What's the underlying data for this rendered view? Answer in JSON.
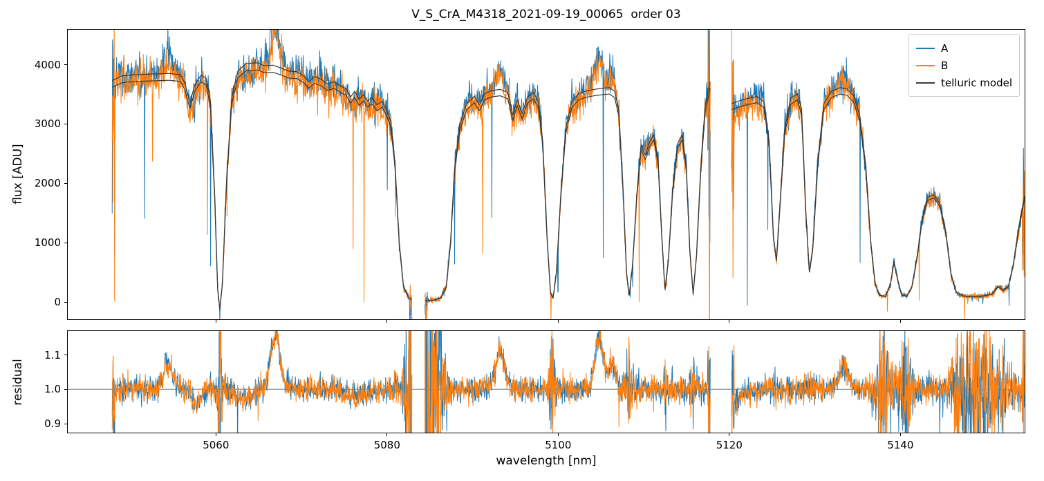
{
  "chart_data": {
    "type": "line",
    "title": "V_S_CrA_M4318_2021-09-19_00065  order 03",
    "xlabel": "wavelength [nm]",
    "xlim": [
      5042.6,
      5154.6
    ],
    "xtick_values": [
      5060,
      5080,
      5100,
      5120,
      5140
    ],
    "xtick_labels": [
      "5060",
      "5080",
      "5100",
      "5120",
      "5140"
    ],
    "grid": false,
    "background": "#ffffff",
    "frame_color": "#000000",
    "hline_color": "#777777",
    "panels": [
      {
        "name": "flux",
        "ylabel": "flux [ADU]",
        "ylim": [
          -300,
          4600
        ],
        "ytick_values": [
          0,
          1000,
          2000,
          3000,
          4000
        ],
        "ytick_labels": [
          "0",
          "1000",
          "2000",
          "3000",
          "4000"
        ]
      },
      {
        "name": "residual",
        "ylabel": "residual",
        "ylim": [
          0.872,
          1.172
        ],
        "ytick_values": [
          0.9,
          1.0,
          1.1
        ],
        "ytick_labels": [
          "0.9",
          "1.0",
          "1.1"
        ],
        "hline": 1.0
      }
    ],
    "legend": [
      {
        "label": "A",
        "color": "#1f77b4"
      },
      {
        "label": "B",
        "color": "#ff7f0e"
      },
      {
        "label": "telluric model",
        "color": "#3a3a3a"
      }
    ],
    "legend_position": "upper right",
    "segments": [
      [
        5047.8,
        5082.9
      ],
      [
        5084.4,
        5117.8
      ],
      [
        5120.3,
        5154.6
      ]
    ],
    "model_scale_B": 0.97,
    "telluric_model_points": [
      [
        5047.8,
        3740
      ],
      [
        5049.0,
        3820
      ],
      [
        5050.5,
        3840
      ],
      [
        5052.5,
        3850
      ],
      [
        5054.5,
        3860
      ],
      [
        5055.8,
        3840
      ],
      [
        5056.3,
        3700
      ],
      [
        5056.9,
        3370
      ],
      [
        5057.5,
        3680
      ],
      [
        5058.2,
        3830
      ],
      [
        5058.8,
        3780
      ],
      [
        5059.3,
        3400
      ],
      [
        5059.8,
        1800
      ],
      [
        5060.15,
        200
      ],
      [
        5060.4,
        -130
      ],
      [
        5060.7,
        300
      ],
      [
        5061.2,
        2100
      ],
      [
        5061.8,
        3450
      ],
      [
        5062.5,
        3900
      ],
      [
        5063.5,
        4030
      ],
      [
        5064.8,
        4040
      ],
      [
        5065.6,
        3990
      ],
      [
        5066.6,
        4000
      ],
      [
        5067.6,
        3950
      ],
      [
        5068.4,
        3900
      ],
      [
        5069.4,
        3890
      ],
      [
        5070.2,
        3820
      ],
      [
        5070.8,
        3720
      ],
      [
        5071.5,
        3810
      ],
      [
        5072.3,
        3760
      ],
      [
        5073.0,
        3680
      ],
      [
        5073.8,
        3720
      ],
      [
        5074.6,
        3640
      ],
      [
        5075.2,
        3600
      ],
      [
        5075.7,
        3460
      ],
      [
        5076.2,
        3560
      ],
      [
        5076.7,
        3420
      ],
      [
        5077.2,
        3500
      ],
      [
        5077.7,
        3390
      ],
      [
        5078.2,
        3450
      ],
      [
        5078.8,
        3330
      ],
      [
        5079.4,
        3390
      ],
      [
        5079.9,
        3250
      ],
      [
        5080.4,
        3050
      ],
      [
        5080.9,
        2350
      ],
      [
        5081.4,
        1000
      ],
      [
        5081.9,
        250
      ],
      [
        5082.5,
        60
      ],
      [
        5083.2,
        20
      ],
      [
        5084.5,
        15
      ],
      [
        5085.5,
        25
      ],
      [
        5086.3,
        70
      ],
      [
        5086.9,
        250
      ],
      [
        5087.4,
        1000
      ],
      [
        5087.9,
        2300
      ],
      [
        5088.5,
        3000
      ],
      [
        5089.3,
        3350
      ],
      [
        5090.2,
        3470
      ],
      [
        5090.8,
        3330
      ],
      [
        5091.4,
        3520
      ],
      [
        5092.2,
        3570
      ],
      [
        5093.2,
        3590
      ],
      [
        5094.1,
        3540
      ],
      [
        5094.7,
        3150
      ],
      [
        5095.2,
        3420
      ],
      [
        5095.8,
        3180
      ],
      [
        5096.4,
        3460
      ],
      [
        5097.1,
        3540
      ],
      [
        5097.7,
        3380
      ],
      [
        5098.2,
        2700
      ],
      [
        5098.7,
        1100
      ],
      [
        5099.1,
        150
      ],
      [
        5099.4,
        60
      ],
      [
        5099.8,
        500
      ],
      [
        5100.3,
        1800
      ],
      [
        5100.9,
        2950
      ],
      [
        5101.6,
        3380
      ],
      [
        5102.4,
        3520
      ],
      [
        5103.2,
        3560
      ],
      [
        5104.2,
        3590
      ],
      [
        5105.2,
        3610
      ],
      [
        5106.0,
        3620
      ],
      [
        5106.6,
        3560
      ],
      [
        5107.1,
        3250
      ],
      [
        5107.6,
        1900
      ],
      [
        5108.0,
        500
      ],
      [
        5108.3,
        90
      ],
      [
        5108.7,
        600
      ],
      [
        5109.2,
        1800
      ],
      [
        5109.7,
        2650
      ],
      [
        5110.2,
        2480
      ],
      [
        5110.7,
        2700
      ],
      [
        5111.2,
        2820
      ],
      [
        5111.7,
        2400
      ],
      [
        5112.1,
        1200
      ],
      [
        5112.5,
        200
      ],
      [
        5112.9,
        700
      ],
      [
        5113.4,
        1900
      ],
      [
        5114.0,
        2680
      ],
      [
        5114.5,
        2820
      ],
      [
        5115.0,
        2300
      ],
      [
        5115.4,
        900
      ],
      [
        5115.8,
        130
      ],
      [
        5116.2,
        800
      ],
      [
        5116.7,
        2300
      ],
      [
        5117.2,
        3300
      ],
      [
        5117.8,
        3720
      ],
      [
        5120.3,
        3350
      ],
      [
        5121.3,
        3400
      ],
      [
        5122.3,
        3440
      ],
      [
        5123.3,
        3470
      ],
      [
        5124.1,
        3380
      ],
      [
        5124.7,
        2700
      ],
      [
        5125.2,
        1100
      ],
      [
        5125.55,
        700
      ],
      [
        5125.9,
        1500
      ],
      [
        5126.5,
        2900
      ],
      [
        5127.2,
        3440
      ],
      [
        5128.0,
        3520
      ],
      [
        5128.5,
        3250
      ],
      [
        5129.0,
        1500
      ],
      [
        5129.4,
        500
      ],
      [
        5129.8,
        900
      ],
      [
        5130.4,
        2400
      ],
      [
        5131.1,
        3350
      ],
      [
        5132.0,
        3560
      ],
      [
        5133.0,
        3620
      ],
      [
        5133.8,
        3600
      ],
      [
        5134.6,
        3480
      ],
      [
        5135.3,
        3150
      ],
      [
        5136.0,
        2300
      ],
      [
        5136.6,
        1000
      ],
      [
        5137.1,
        300
      ],
      [
        5137.6,
        110
      ],
      [
        5138.3,
        85
      ],
      [
        5138.9,
        300
      ],
      [
        5139.3,
        680
      ],
      [
        5139.7,
        400
      ],
      [
        5140.2,
        110
      ],
      [
        5140.8,
        95
      ],
      [
        5141.4,
        250
      ],
      [
        5142.0,
        750
      ],
      [
        5142.6,
        1400
      ],
      [
        5143.2,
        1760
      ],
      [
        5144.0,
        1810
      ],
      [
        5144.7,
        1650
      ],
      [
        5145.4,
        1150
      ],
      [
        5146.0,
        450
      ],
      [
        5146.6,
        160
      ],
      [
        5147.4,
        95
      ],
      [
        5148.6,
        85
      ],
      [
        5149.8,
        95
      ],
      [
        5150.8,
        130
      ],
      [
        5151.5,
        260
      ],
      [
        5152.1,
        190
      ],
      [
        5152.7,
        260
      ],
      [
        5153.3,
        650
      ],
      [
        5153.9,
        1250
      ],
      [
        5154.6,
        1800
      ]
    ],
    "emission_bumps": [
      {
        "center": 5054.3,
        "width": 0.55,
        "amp": 0.075
      },
      {
        "center": 5066.9,
        "width": 0.55,
        "amp": 0.16
      },
      {
        "center": 5093.2,
        "width": 0.55,
        "amp": 0.105
      },
      {
        "center": 5104.8,
        "width": 0.5,
        "amp": 0.15
      },
      {
        "center": 5106.3,
        "width": 0.4,
        "amp": 0.07
      },
      {
        "center": 5133.4,
        "width": 0.6,
        "amp": 0.06
      },
      {
        "center": 5057.6,
        "width": 0.5,
        "amp": -0.045
      },
      {
        "center": 5063.4,
        "width": 0.9,
        "amp": -0.028
      },
      {
        "center": 5076.5,
        "width": 1.2,
        "amp": -0.02
      },
      {
        "center": 5121.0,
        "width": 0.8,
        "amp": -0.03
      }
    ],
    "noise": {
      "seed": 20210919,
      "dx": 0.04,
      "flux_sigma_abs": 22,
      "flux_sigma_rel": 0.033,
      "spike_prob_A": 0.008,
      "spike_prob_B": 0.005,
      "edge_spike_prob": 0.3,
      "residual_sigma": 0.016,
      "residual_flux_coupling": 600,
      "edge_width": 0.3,
      "edge_gain": 5
    }
  }
}
